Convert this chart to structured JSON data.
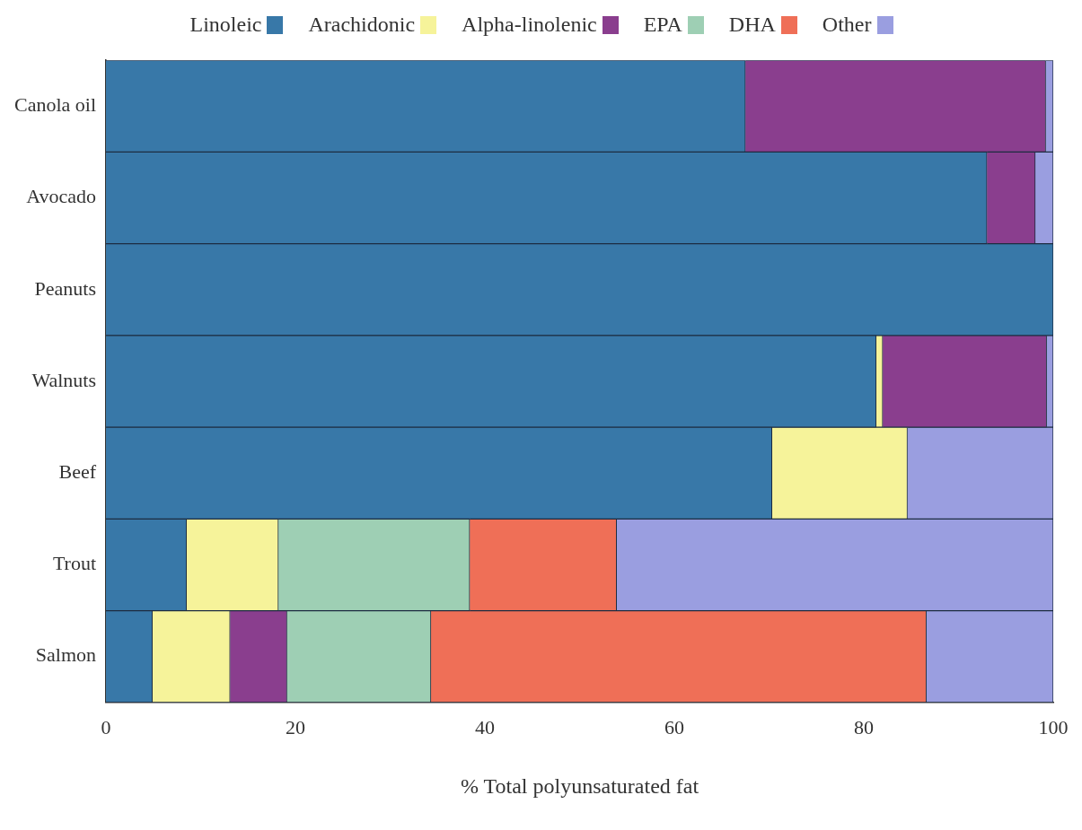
{
  "chart_data": {
    "type": "bar",
    "orientation": "horizontal",
    "stacked": true,
    "xlabel": "% Total polyunsaturated fat",
    "categories": [
      "Canola oil",
      "Avocado",
      "Peanuts",
      "Walnuts",
      "Beef",
      "Trout",
      "Salmon"
    ],
    "series": [
      {
        "name": "Linoleic",
        "color": "#3878a8",
        "values": [
          67.5,
          93,
          100,
          81.3,
          70.3,
          8.5,
          4.9
        ]
      },
      {
        "name": "Arachidonic",
        "color": "#f6f39a",
        "values": [
          null,
          null,
          null,
          0.7,
          14.3,
          9.7,
          8.2
        ]
      },
      {
        "name": "Alpha-linolenic",
        "color": "#8a3e8e",
        "values": [
          31.7,
          5.1,
          null,
          17.3,
          null,
          null,
          6.0
        ]
      },
      {
        "name": "EPA",
        "color": "#9ecfb4",
        "values": [
          null,
          null,
          null,
          null,
          null,
          20.2,
          15.2
        ]
      },
      {
        "name": "DHA",
        "color": "#ef6f57",
        "values": [
          null,
          null,
          null,
          null,
          null,
          15.5,
          52.3
        ]
      },
      {
        "name": "Other",
        "color": "#9a9ee0",
        "values": [
          0.8,
          1.9,
          null,
          0.7,
          15.4,
          46.1,
          13.4
        ]
      }
    ],
    "xlim": [
      0,
      100
    ],
    "xticks": [
      0,
      20,
      40,
      60,
      80,
      100
    ],
    "grid": false,
    "legend": "top"
  }
}
